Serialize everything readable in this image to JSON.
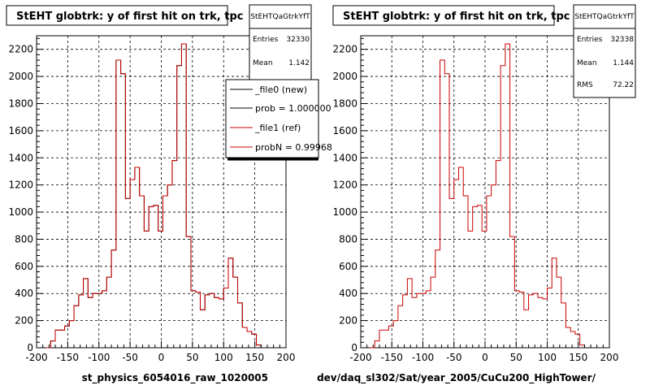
{
  "chart_data": [
    {
      "type": "histogram",
      "title": "StEHT globtrk: y of first hit on trk, tpc",
      "xlabel": "st_physics_6054016_raw_1020005",
      "xlim": [
        -200,
        200
      ],
      "ylim": [
        0,
        2300
      ],
      "x_ticks": [
        -200,
        -150,
        -100,
        -50,
        0,
        50,
        100,
        150,
        200
      ],
      "y_ticks": [
        0,
        200,
        400,
        600,
        800,
        1000,
        1200,
        1400,
        1600,
        1800,
        2000,
        2200
      ],
      "grid": true,
      "bin_edges_start": -185,
      "bin_width": 7.5,
      "series": [
        {
          "name": "_file0 (new)",
          "color": "#000000",
          "values": [
            0,
            50,
            130,
            130,
            160,
            200,
            310,
            390,
            510,
            370,
            400,
            400,
            420,
            520,
            720,
            2120,
            2020,
            1100,
            1240,
            1330,
            1120,
            860,
            1040,
            1050,
            860,
            1120,
            1200,
            1380,
            2080,
            2240,
            820,
            420,
            410,
            280,
            390,
            400,
            370,
            360,
            440,
            660,
            520,
            330,
            150,
            120,
            100,
            20
          ]
        },
        {
          "name": "_file1 (ref)",
          "color": "#cc0000",
          "values": [
            0,
            50,
            130,
            130,
            160,
            200,
            310,
            390,
            510,
            370,
            400,
            400,
            420,
            520,
            720,
            2120,
            2020,
            1100,
            1240,
            1330,
            1120,
            860,
            1040,
            1050,
            860,
            1120,
            1200,
            1380,
            2080,
            2240,
            820,
            420,
            410,
            280,
            390,
            400,
            370,
            360,
            440,
            660,
            520,
            330,
            150,
            120,
            100,
            20
          ]
        }
      ],
      "stats": {
        "box_title": "StEHTQaGtrkYfT",
        "entries_label": "Entries",
        "entries": "32330",
        "mean_label": "Mean",
        "mean": "1.142"
      },
      "legend": {
        "placement": "top-right",
        "entries": [
          "_file0 (new)",
          "prob = 1.000000",
          "_file1 (ref)",
          "probN = 0.99968"
        ]
      }
    },
    {
      "type": "histogram",
      "title": "StEHT globtrk: y of first hit on trk, tpc",
      "xlabel": "dev/daq_sl302/Sat/year_2005/CuCu200_HighTower/",
      "xlim": [
        -200,
        200
      ],
      "ylim": [
        0,
        2300
      ],
      "x_ticks": [
        -200,
        -150,
        -100,
        -50,
        0,
        50,
        100,
        150,
        200
      ],
      "y_ticks": [
        0,
        200,
        400,
        600,
        800,
        1000,
        1200,
        1400,
        1600,
        1800,
        2000,
        2200
      ],
      "grid": true,
      "bin_edges_start": -185,
      "bin_width": 7.5,
      "series": [
        {
          "color": "#cc0000",
          "values": [
            0,
            50,
            130,
            130,
            160,
            200,
            310,
            390,
            510,
            370,
            400,
            400,
            420,
            520,
            720,
            2120,
            2020,
            1100,
            1240,
            1330,
            1120,
            860,
            1040,
            1050,
            860,
            1120,
            1200,
            1380,
            2080,
            2240,
            820,
            420,
            410,
            280,
            390,
            400,
            370,
            360,
            440,
            660,
            520,
            330,
            150,
            120,
            100,
            20
          ]
        }
      ],
      "stats": {
        "box_title": "StEHTQaGtrkYfT",
        "entries_label": "Entries",
        "entries": "32338",
        "mean_label": "Mean",
        "mean": "1.144",
        "rms_label": "RMS",
        "rms": "72.22"
      }
    }
  ]
}
